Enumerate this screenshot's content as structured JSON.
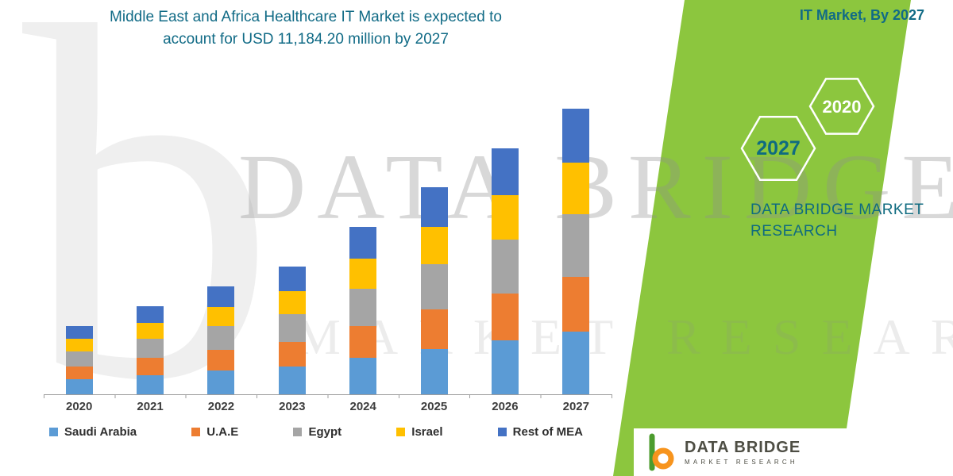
{
  "title": {
    "line1": "Middle East and Africa Healthcare IT Market is expected to",
    "line2": "account for USD 11,184.20 million by 2027"
  },
  "side_panel": {
    "caption": "IT Market, By 2027",
    "hexagon_front": "2027",
    "hexagon_back": "2020",
    "brand_line1": "DATA BRIDGE MARKET",
    "brand_line2": "RESEARCH"
  },
  "watermark": {
    "logo_glyph": "b",
    "line1": "DATA BRIDGE",
    "line2": "MARKET RESEARCH"
  },
  "footer_logo": {
    "name": "DATA BRIDGE",
    "subname": "MARKET RESEARCH"
  },
  "colors": {
    "accent_teal": "#116B86",
    "band_green": "#8CC63E",
    "axis_gray": "#9E9E9E"
  },
  "chart_data": {
    "type": "bar",
    "stacked": true,
    "units": "USD million",
    "title": "Middle East and Africa Healthcare IT Market is expected to account for USD 11,184.20 million by 2027",
    "categories": [
      "2020",
      "2021",
      "2022",
      "2023",
      "2024",
      "2025",
      "2026",
      "2027"
    ],
    "series": [
      {
        "name": "Saudi Arabia",
        "color": "#5B9BD5",
        "values": [
          590,
          760,
          930,
          1100,
          1440,
          1780,
          2120,
          2460
        ]
      },
      {
        "name": "U.A.E",
        "color": "#ED7D31",
        "values": [
          510,
          655,
          805,
          950,
          1245,
          1540,
          1830,
          2125
        ]
      },
      {
        "name": "Egypt",
        "color": "#A5A5A5",
        "values": [
          590,
          760,
          930,
          1100,
          1440,
          1780,
          2120,
          2460
        ]
      },
      {
        "name": "Israel",
        "color": "#FFC000",
        "values": [
          485,
          625,
          760,
          900,
          1180,
          1460,
          1735,
          2014.2
        ]
      },
      {
        "name": "Rest of MEA",
        "color": "#4472C4",
        "values": [
          510,
          660,
          805,
          950,
          1245,
          1540,
          1835,
          2125
        ]
      }
    ],
    "totals": [
      2685,
      3460,
      4230,
      5000,
      6550,
      8100,
      9640,
      11184.2
    ],
    "ylim": [
      0,
      11500
    ],
    "grid": false,
    "legend_position": "bottom",
    "xlabel": "",
    "ylabel": ""
  }
}
